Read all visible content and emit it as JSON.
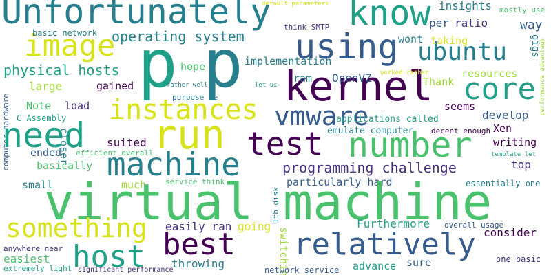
{
  "colors": {
    "yellow": "#d8e219",
    "lime": "#a0da39",
    "green": "#4ac16d",
    "seagreen": "#1fa187",
    "teal": "#277f8e",
    "blue": "#365c8d",
    "indigo": "#46327e",
    "violet": "#440154"
  },
  "words": [
    {
      "text": "Unfortunately",
      "color": "#277f8e"
    },
    {
      "text": "know",
      "color": "#1fa187"
    },
    {
      "text": "insights",
      "color": "#277f8e"
    },
    {
      "text": "mostly use",
      "color": "#4ac16d"
    },
    {
      "text": "default parameters",
      "color": "#d8e219"
    },
    {
      "text": "image",
      "color": "#d8e219"
    },
    {
      "text": "p",
      "color": "#1fa187"
    },
    {
      "text": "p",
      "color": "#277f8e"
    },
    {
      "text": "using",
      "color": "#365c8d"
    },
    {
      "text": "operating system",
      "color": "#277f8e"
    },
    {
      "text": "basic network",
      "color": "#277f8e"
    },
    {
      "text": "think SMTP",
      "color": "#46327e"
    },
    {
      "text": "per",
      "color": "#365c8d"
    },
    {
      "text": "ratio",
      "color": "#46327e"
    },
    {
      "text": "way",
      "color": "#365c8d"
    },
    {
      "text": "wont",
      "color": "#277f8e"
    },
    {
      "text": "gigs",
      "color": "#277f8e"
    },
    {
      "text": "performance advantage",
      "color": "#a0da39"
    },
    {
      "text": "ubuntu",
      "color": "#277f8e"
    },
    {
      "text": "taking",
      "color": "#d8e219"
    },
    {
      "text": "physical hosts",
      "color": "#1fa187"
    },
    {
      "text": "hope",
      "color": "#4ac16d"
    },
    {
      "text": "implementation",
      "color": "#277f8e"
    },
    {
      "text": "resources",
      "color": "#a0da39"
    },
    {
      "text": "kernel",
      "color": "#440154"
    },
    {
      "text": "core",
      "color": "#1fa187"
    },
    {
      "text": "large",
      "color": "#a0da39"
    },
    {
      "text": "gained",
      "color": "#440154"
    },
    {
      "text": "rather well",
      "color": "#277f8e"
    },
    {
      "text": "let us",
      "color": "#1fa187"
    },
    {
      "text": "ram",
      "color": "#277f8e"
    },
    {
      "text": "OpenVZ",
      "color": "#365c8d"
    },
    {
      "text": "worked rather",
      "color": "#d8e219"
    },
    {
      "text": "Thank",
      "color": "#a0da39"
    },
    {
      "text": "computer hardware",
      "color": "#365c8d"
    },
    {
      "text": "purpose ie",
      "color": "#277f8e"
    },
    {
      "text": "Note",
      "color": "#4ac16d"
    },
    {
      "text": "load",
      "color": "#46327e"
    },
    {
      "text": "instances",
      "color": "#d8e219"
    },
    {
      "text": "vmware",
      "color": "#365c8d"
    },
    {
      "text": "applications called",
      "color": "#1fa187"
    },
    {
      "text": "seems",
      "color": "#440154"
    },
    {
      "text": "develop",
      "color": "#365c8d"
    },
    {
      "text": "C Assembly",
      "color": "#1fa187"
    },
    {
      "text": "need",
      "color": "#1fa187"
    },
    {
      "text": "run",
      "color": "#d8e219"
    },
    {
      "text": "emulate computer",
      "color": "#277f8e"
    },
    {
      "text": "Xen",
      "color": "#440154"
    },
    {
      "text": "decent enough",
      "color": "#440154"
    },
    {
      "text": "test",
      "color": "#440154"
    },
    {
      "text": "number",
      "color": "#4ac16d"
    },
    {
      "text": "closer",
      "color": "#277f8e"
    },
    {
      "text": "ended",
      "color": "#365c8d"
    },
    {
      "text": "suited",
      "color": "#440154"
    },
    {
      "text": "efficient overall",
      "color": "#4ac16d"
    },
    {
      "text": "writing",
      "color": "#440154"
    },
    {
      "text": "template let",
      "color": "#1fa187"
    },
    {
      "text": "machine",
      "color": "#277f8e"
    },
    {
      "text": "basically",
      "color": "#4ac16d"
    },
    {
      "text": "programming challenge",
      "color": "#46327e"
    },
    {
      "text": "top",
      "color": "#46327e"
    },
    {
      "text": "small",
      "color": "#277f8e"
    },
    {
      "text": "much",
      "color": "#a0da39"
    },
    {
      "text": "service think",
      "color": "#4ac16d"
    },
    {
      "text": "particularly hard",
      "color": "#365c8d"
    },
    {
      "text": "essentially one",
      "color": "#277f8e"
    },
    {
      "text": "virtual machine",
      "color": "#4ac16d"
    },
    {
      "text": "1tb disk",
      "color": "#277f8e"
    },
    {
      "text": "something",
      "color": "#d8e219"
    },
    {
      "text": "easily ran",
      "color": "#46327e"
    },
    {
      "text": "going",
      "color": "#d8e219"
    },
    {
      "text": "Furthermore",
      "color": "#1fa187"
    },
    {
      "text": "overall usage",
      "color": "#365c8d"
    },
    {
      "text": "consider",
      "color": "#440154"
    },
    {
      "text": "best",
      "color": "#440154"
    },
    {
      "text": "relatively",
      "color": "#365c8d"
    },
    {
      "text": "switching",
      "color": "#a0da39"
    },
    {
      "text": "host",
      "color": "#1fa187"
    },
    {
      "text": "anywhere near",
      "color": "#46327e"
    },
    {
      "text": "easiest",
      "color": "#4ac16d"
    },
    {
      "text": "extremely light",
      "color": "#1fa187"
    },
    {
      "text": "throwing",
      "color": "#277f8e"
    },
    {
      "text": "significant performance",
      "color": "#46327e"
    },
    {
      "text": "network service",
      "color": "#365c8d"
    },
    {
      "text": "advance",
      "color": "#1fa187"
    },
    {
      "text": "sure",
      "color": "#365c8d"
    },
    {
      "text": "one basic",
      "color": "#46327e"
    }
  ]
}
